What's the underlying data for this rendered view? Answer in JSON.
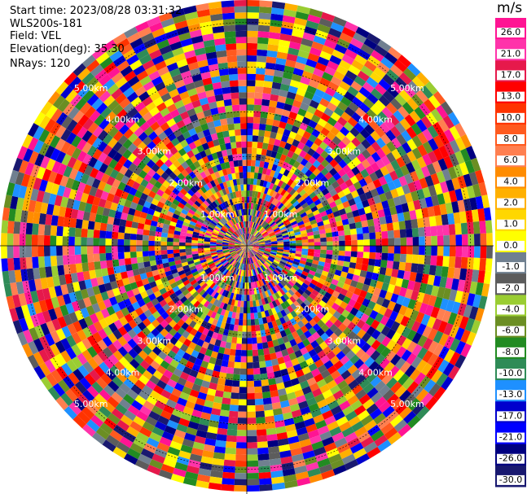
{
  "header": {
    "start_time": "Start time: 2023/08/28 03:31:32",
    "site": "WLS200s-181",
    "field": "Field: VEL",
    "elevation": "Elevation(deg): 35.30",
    "nrays": "NRays: 120"
  },
  "colorbar": {
    "unit": "m/s",
    "ticks": [
      "26.0",
      "21.0",
      "17.0",
      "13.0",
      "10.0",
      "8.0",
      "6.0",
      "4.0",
      "2.0",
      "1.0",
      "0.0",
      "-1.0",
      "-2.0",
      "-4.0",
      "-6.0",
      "-8.0",
      "-10.0",
      "-13.0",
      "-17.0",
      "-21.0",
      "-26.0",
      "-30.0"
    ],
    "colors": [
      "#ff1493",
      "#ff33aa",
      "#e6194b",
      "#ff0000",
      "#ff3300",
      "#ff5a1f",
      "#ff7f50",
      "#ff8c00",
      "#ffb000",
      "#ffd700",
      "#ffff00",
      "#708090",
      "#5c5c5c",
      "#9acd32",
      "#6b8e23",
      "#228b22",
      "#2e8b57",
      "#1e90ff",
      "#0000cd",
      "#0000ff",
      "#000080",
      "#191970"
    ]
  },
  "chart_data": {
    "type": "heatmap",
    "projection": "polar (PPI)",
    "field": "VEL",
    "units": "m/s",
    "nrays": 120,
    "range_ring_labels": [
      "5.00km",
      "4.00km",
      "3.00km",
      "2.00km",
      "1.00km"
    ],
    "range_rings_km": [
      1,
      2,
      3,
      4,
      5
    ],
    "value_range": [
      -30,
      26
    ],
    "description_of_values": "velocity values per range gate appear noise-like across all colors"
  }
}
